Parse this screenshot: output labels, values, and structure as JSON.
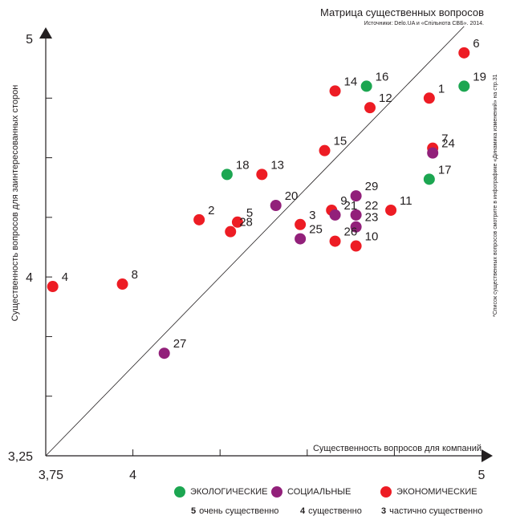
{
  "chart_data": {
    "type": "scatter",
    "title": "Матрица существенных вопросов",
    "source": "Источники: Delo.UA и «Спільнота СВБ». 2014.",
    "side_note": "*Список существенных вопросов смотрите в инфографике «Динамика изменений» на стр.31",
    "xlabel": "Существенность вопросов  для компаний",
    "ylabel": "Существенность вопросов  для заинтересованных сторон",
    "xlim": [
      3.75,
      5
    ],
    "ylim": [
      3.25,
      5
    ],
    "x_ticks": [
      {
        "value": 3.75,
        "label": "3,75"
      },
      {
        "value": 4,
        "label": "4"
      },
      {
        "value": 5,
        "label": "5"
      }
    ],
    "y_ticks": [
      {
        "value": 3.25,
        "label": "3,25"
      },
      {
        "value": 4,
        "label": "4"
      },
      {
        "value": 5,
        "label": "5"
      }
    ],
    "colors": {
      "Экологические": "#1ca651",
      "Социальные": "#92207a",
      "Экономические": "#ed1c24"
    },
    "points": [
      {
        "label": "1",
        "x": 4.85,
        "y": 4.75,
        "category": "Экономические"
      },
      {
        "label": "2",
        "x": 4.19,
        "y": 4.24,
        "category": "Экономические"
      },
      {
        "label": "3",
        "x": 4.48,
        "y": 4.22,
        "category": "Экономические"
      },
      {
        "label": "4",
        "x": 3.77,
        "y": 3.96,
        "category": "Экономические"
      },
      {
        "label": "5",
        "x": 4.3,
        "y": 4.23,
        "category": "Экономические"
      },
      {
        "label": "6",
        "x": 4.95,
        "y": 4.94,
        "category": "Экономические"
      },
      {
        "label": "7",
        "x": 4.86,
        "y": 4.54,
        "category": "Экономические"
      },
      {
        "label": "8",
        "x": 3.97,
        "y": 3.97,
        "category": "Экономические"
      },
      {
        "label": "9",
        "x": 4.57,
        "y": 4.28,
        "category": "Экономические"
      },
      {
        "label": "10",
        "x": 4.64,
        "y": 4.13,
        "category": "Экономические"
      },
      {
        "label": "11",
        "x": 4.74,
        "y": 4.28,
        "category": "Экономические"
      },
      {
        "label": "12",
        "x": 4.68,
        "y": 4.71,
        "category": "Экономические"
      },
      {
        "label": "13",
        "x": 4.37,
        "y": 4.43,
        "category": "Экономические"
      },
      {
        "label": "14",
        "x": 4.58,
        "y": 4.78,
        "category": "Экономические"
      },
      {
        "label": "15",
        "x": 4.55,
        "y": 4.53,
        "category": "Экономические"
      },
      {
        "label": "16",
        "x": 4.67,
        "y": 4.8,
        "category": "Экологические"
      },
      {
        "label": "17",
        "x": 4.85,
        "y": 4.41,
        "category": "Экологические"
      },
      {
        "label": "18",
        "x": 4.27,
        "y": 4.43,
        "category": "Экологические"
      },
      {
        "label": "19",
        "x": 4.95,
        "y": 4.8,
        "category": "Экологические"
      },
      {
        "label": "20",
        "x": 4.41,
        "y": 4.3,
        "category": "Социальные"
      },
      {
        "label": "21",
        "x": 4.58,
        "y": 4.26,
        "category": "Социальные"
      },
      {
        "label": "22",
        "x": 4.64,
        "y": 4.26,
        "category": "Социальные"
      },
      {
        "label": "23",
        "x": 4.64,
        "y": 4.21,
        "category": "Социальные"
      },
      {
        "label": "24",
        "x": 4.86,
        "y": 4.52,
        "category": "Социальные"
      },
      {
        "label": "25",
        "x": 4.48,
        "y": 4.16,
        "category": "Социальные"
      },
      {
        "label": "26",
        "x": 4.58,
        "y": 4.15,
        "category": "Экономические"
      },
      {
        "label": "27",
        "x": 4.09,
        "y": 3.68,
        "category": "Социальные"
      },
      {
        "label": "28",
        "x": 4.28,
        "y": 4.19,
        "category": "Экономические"
      },
      {
        "label": "29",
        "x": 4.64,
        "y": 4.34,
        "category": "Социальные"
      }
    ],
    "diagonal": true,
    "grid": false
  },
  "legend": [
    {
      "label": "ЭКОЛОГИЧЕСКИЕ",
      "color": "#1ca651"
    },
    {
      "label": "СОЦИАЛЬНЫЕ",
      "color": "#92207a"
    },
    {
      "label": "ЭКОНОМИЧЕСКИЕ",
      "color": "#ed1c24"
    }
  ],
  "scale": [
    {
      "num": "5",
      "text": "очень существенно"
    },
    {
      "num": "4",
      "text": "существенно"
    },
    {
      "num": "3",
      "text": "частично существенно"
    }
  ]
}
